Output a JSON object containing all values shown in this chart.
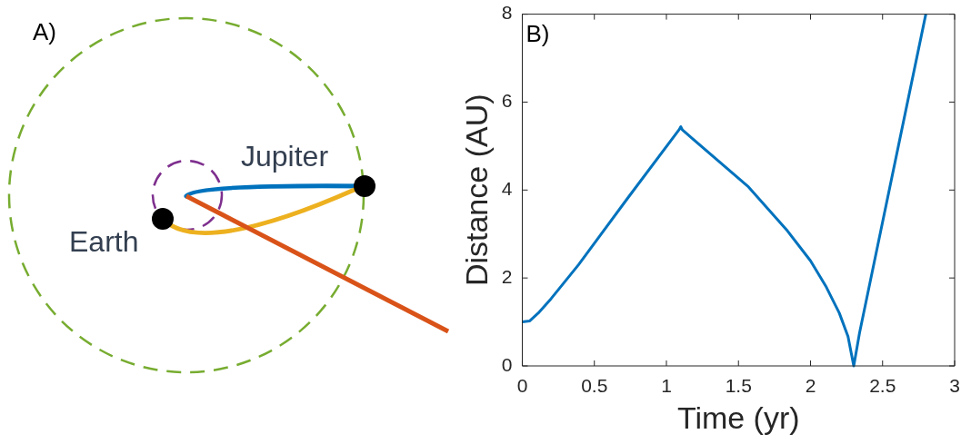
{
  "chart_data": [
    {
      "type": "other",
      "annotations": [
        "A)",
        "Earth",
        "Jupiter"
      ]
    },
    {
      "type": "line",
      "xlabel": "Time (yr)",
      "ylabel": "Distance (AU)",
      "annotations": [
        "B)"
      ],
      "xlim": [
        0,
        3
      ],
      "xticks": [
        0,
        0.5,
        1,
        1.5,
        2,
        2.5,
        3
      ],
      "ylim": [
        0,
        8
      ],
      "yticks": [
        0,
        2,
        4,
        6,
        8
      ],
      "series": [
        {
          "color": "#0072bd",
          "x": [
            0,
            0.05,
            0.11,
            0.2,
            0.39,
            0.73,
            1.09,
            1.1,
            1.11,
            1.57,
            1.84,
            2.0,
            2.11,
            2.2,
            2.26,
            2.3,
            2.34,
            2.8
          ],
          "values": [
            1.0,
            1.02,
            1.2,
            1.53,
            2.3,
            3.81,
            5.38,
            5.44,
            5.37,
            4.07,
            3.07,
            2.39,
            1.79,
            1.2,
            0.67,
            0,
            0.75,
            8
          ]
        }
      ]
    }
  ]
}
